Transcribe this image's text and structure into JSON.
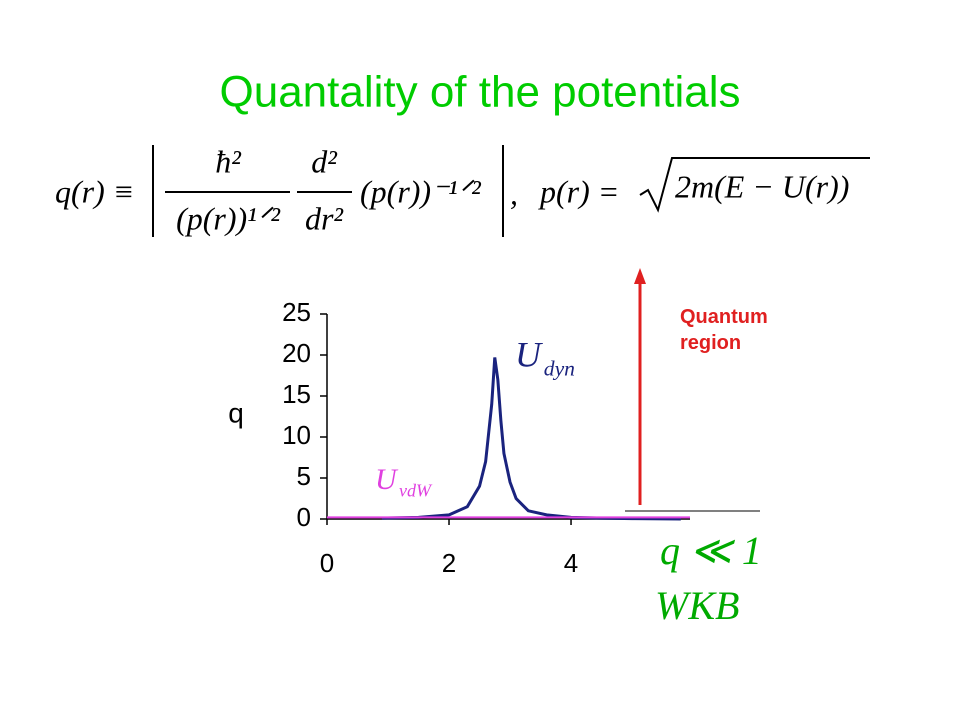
{
  "chart_data": {
    "type": "line",
    "title": "Quantality of the potentials",
    "formula": [
      "q(r) ≡",
      "ħ²",
      "(p(r))¹ᐟ²",
      "d²",
      "dr²",
      "(p(r))⁻¹ᐟ²",
      ",",
      "p(r) =",
      "2m(E − U(r))"
    ],
    "ylabel": "q",
    "xlim": [
      0,
      5.95
    ],
    "ylim": [
      0,
      25
    ],
    "xticks": [
      0,
      2,
      4
    ],
    "yticks": [
      0,
      5,
      10,
      15,
      20,
      25
    ],
    "series": [
      {
        "name": "U",
        "subscript": "dyn",
        "color": "#1a237e",
        "x": [
          0.9,
          1.5,
          2.0,
          2.3,
          2.5,
          2.6,
          2.7,
          2.75,
          2.8,
          2.85,
          2.9,
          3.0,
          3.1,
          3.3,
          3.6,
          4.0,
          4.5,
          5.0,
          5.8
        ],
        "values": [
          0.1,
          0.2,
          0.5,
          1.5,
          4,
          7,
          14,
          19.7,
          17,
          12,
          8,
          4.5,
          2.5,
          1,
          0.5,
          0.2,
          0.1,
          0.05,
          0
        ]
      },
      {
        "name": "U",
        "subscript": "vdW",
        "color": "#e040e0",
        "x": [
          0,
          5.95
        ],
        "values": [
          0.2,
          0.2
        ]
      }
    ],
    "annotations": [
      "Quantum region",
      "q ≪ 1",
      "WKB"
    ]
  }
}
